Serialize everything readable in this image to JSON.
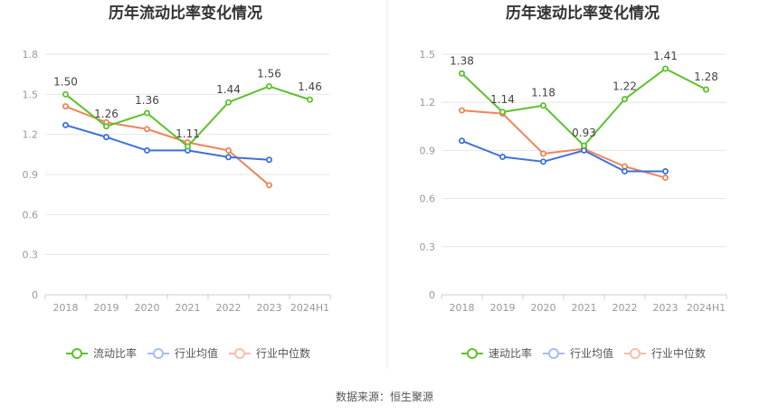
{
  "chart_data": [
    {
      "type": "line",
      "title": "历年流动比率变化情况",
      "categories": [
        "2018",
        "2019",
        "2020",
        "2021",
        "2022",
        "2023",
        "2024H1"
      ],
      "ylim": [
        0,
        1.8
      ],
      "yticks": [
        "0",
        "0.3",
        "0.6",
        "0.9",
        "1.2",
        "1.5",
        "1.8"
      ],
      "series": [
        {
          "name": "流动比率",
          "color": "#5cc22d",
          "values": [
            1.5,
            1.26,
            1.36,
            1.11,
            1.44,
            1.56,
            1.46
          ],
          "labels": [
            "1.50",
            "1.26",
            "1.36",
            "1.11",
            "1.44",
            "1.56",
            "1.46"
          ]
        },
        {
          "name": "行业均值",
          "color": "#3d71d9",
          "values": [
            1.27,
            1.18,
            1.08,
            1.08,
            1.03,
            1.01,
            null
          ]
        },
        {
          "name": "行业中位数",
          "color": "#f0845a",
          "values": [
            1.41,
            1.29,
            1.24,
            1.14,
            1.08,
            0.82,
            null
          ]
        }
      ]
    },
    {
      "type": "line",
      "title": "历年速动比率变化情况",
      "categories": [
        "2018",
        "2019",
        "2020",
        "2021",
        "2022",
        "2023",
        "2024H1"
      ],
      "ylim": [
        0,
        1.5
      ],
      "yticks": [
        "0",
        "0.3",
        "0.6",
        "0.9",
        "1.2",
        "1.5"
      ],
      "series": [
        {
          "name": "速动比率",
          "color": "#5cc22d",
          "values": [
            1.38,
            1.14,
            1.18,
            0.93,
            1.22,
            1.41,
            1.28
          ],
          "labels": [
            "1.38",
            "1.14",
            "1.18",
            "0.93",
            "1.22",
            "1.41",
            "1.28"
          ]
        },
        {
          "name": "行业均值",
          "color": "#3d71d9",
          "values": [
            0.96,
            0.86,
            0.83,
            0.9,
            0.77,
            0.77,
            null
          ]
        },
        {
          "name": "行业中位数",
          "color": "#f0845a",
          "values": [
            1.15,
            1.13,
            0.88,
            0.91,
            0.8,
            0.73,
            null
          ]
        }
      ]
    }
  ],
  "source": "数据来源：恒生聚源",
  "colors": {
    "grid": "#e6e6e6",
    "axis": "#cccccc",
    "divider": "#e8e8e8"
  }
}
